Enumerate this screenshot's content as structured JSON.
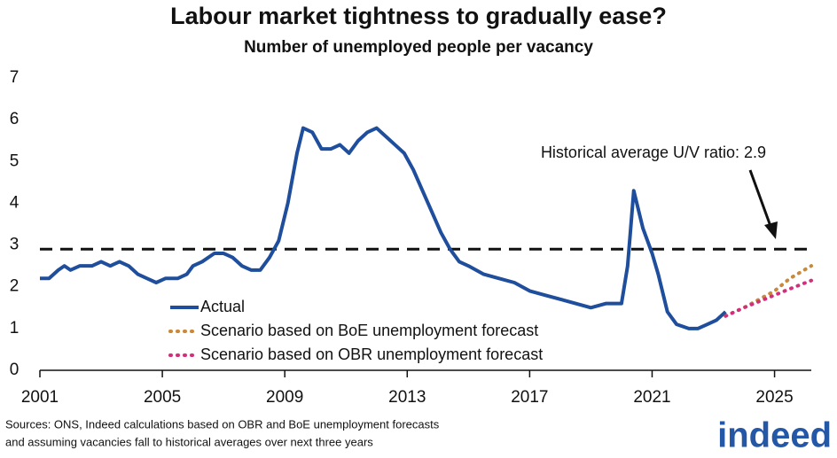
{
  "chart_data": {
    "type": "line",
    "title": "Labour market tightness to gradually ease?",
    "subtitle": "Number of unemployed people per vacancy",
    "annotation": "Historical average U/V ratio: 2.9",
    "reference_line": {
      "value": 2.9,
      "color": "#111111",
      "style": "dashed"
    },
    "xlim": [
      2001,
      2026.2
    ],
    "xticks": [
      2001,
      2005,
      2009,
      2013,
      2017,
      2021,
      2025
    ],
    "ylim": [
      0,
      7
    ],
    "yticks": [
      0,
      1,
      2,
      3,
      4,
      5,
      6,
      7
    ],
    "grid": false,
    "legend": "lower-left",
    "series": [
      {
        "name": "Actual",
        "color": "#1f4e9c",
        "style": "solid",
        "x": [
          2001.0,
          2001.3,
          2001.6,
          2001.8,
          2002.0,
          2002.3,
          2002.7,
          2003.0,
          2003.3,
          2003.6,
          2003.9,
          2004.2,
          2004.5,
          2004.8,
          2005.1,
          2005.5,
          2005.8,
          2006.0,
          2006.3,
          2006.7,
          2007.0,
          2007.3,
          2007.6,
          2007.9,
          2008.2,
          2008.5,
          2008.8,
          2009.1,
          2009.4,
          2009.6,
          2009.9,
          2010.2,
          2010.5,
          2010.8,
          2011.1,
          2011.4,
          2011.7,
          2012.0,
          2012.3,
          2012.6,
          2012.9,
          2013.2,
          2013.5,
          2013.8,
          2014.1,
          2014.4,
          2014.7,
          2015.0,
          2015.5,
          2016.0,
          2016.5,
          2017.0,
          2017.5,
          2018.0,
          2018.5,
          2019.0,
          2019.5,
          2020.0,
          2020.2,
          2020.4,
          2020.7,
          2021.0,
          2021.2,
          2021.5,
          2021.8,
          2022.2,
          2022.5,
          2022.8,
          2023.1,
          2023.4
        ],
        "values": [
          2.2,
          2.2,
          2.4,
          2.5,
          2.4,
          2.5,
          2.5,
          2.6,
          2.5,
          2.6,
          2.5,
          2.3,
          2.2,
          2.1,
          2.2,
          2.2,
          2.3,
          2.5,
          2.6,
          2.8,
          2.8,
          2.7,
          2.5,
          2.4,
          2.4,
          2.7,
          3.1,
          4.0,
          5.2,
          5.8,
          5.7,
          5.3,
          5.3,
          5.4,
          5.2,
          5.5,
          5.7,
          5.8,
          5.6,
          5.4,
          5.2,
          4.8,
          4.3,
          3.8,
          3.3,
          2.9,
          2.6,
          2.5,
          2.3,
          2.2,
          2.1,
          1.9,
          1.8,
          1.7,
          1.6,
          1.5,
          1.6,
          1.6,
          2.5,
          4.3,
          3.4,
          2.8,
          2.3,
          1.4,
          1.1,
          1.0,
          1.0,
          1.1,
          1.2,
          1.4
        ]
      },
      {
        "name": "Scenario based on BoE unemployment forecast",
        "color": "#c9883a",
        "style": "dotted",
        "x": [
          2023.4,
          2024.0,
          2024.5,
          2025.0,
          2025.5,
          2026.2
        ],
        "values": [
          1.3,
          1.5,
          1.7,
          1.9,
          2.2,
          2.5
        ]
      },
      {
        "name": "Scenario based on OBR unemployment forecast",
        "color": "#d0307a",
        "style": "dotted",
        "x": [
          2023.4,
          2024.0,
          2024.5,
          2025.0,
          2025.5,
          2026.2
        ],
        "values": [
          1.3,
          1.5,
          1.65,
          1.8,
          1.95,
          2.15
        ]
      }
    ],
    "source_lines": [
      "Sources: ONS, Indeed calculations based on OBR and BoE unemployment forecasts",
      "and assuming vacancies fall to historical averages over next three years"
    ],
    "logo": "indeed"
  }
}
